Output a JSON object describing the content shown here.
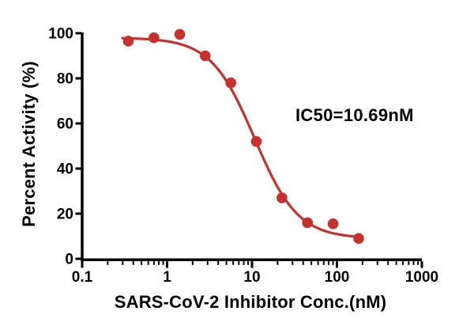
{
  "chart_data": {
    "type": "scatter",
    "title": "",
    "xlabel": "SARS-CoV-2 Inhibitor Conc.(nM)",
    "ylabel": "Percent Activity (%)",
    "annotation": "IC50=10.69nM",
    "x_scale": "log10",
    "xlim": [
      0.1,
      1000
    ],
    "ylim": [
      0,
      100
    ],
    "grid": false,
    "legend_position": "none",
    "x_tick_values": [
      0.1,
      1,
      10,
      100,
      1000
    ],
    "x_tick_labels": [
      "0.1",
      "1",
      "10",
      "100",
      "1000"
    ],
    "y_tick_values": [
      0,
      20,
      40,
      60,
      80,
      100
    ],
    "y_tick_labels": [
      "0",
      "20",
      "40",
      "60",
      "80",
      "100"
    ],
    "series": [
      {
        "name": "percent-activity-vs-inhibitor-conc",
        "marker": "circle",
        "color": "#C5322E",
        "x": [
          0.35,
          0.7,
          1.41,
          2.81,
          5.63,
          11.25,
          22.5,
          45,
          90,
          180
        ],
        "y": [
          96.5,
          98,
          99.5,
          90,
          78,
          52,
          27,
          16,
          15.5,
          9
        ]
      }
    ],
    "curve_fit": {
      "model": "four-parameter-logistic-inhibition",
      "top": 98,
      "bottom": 9,
      "ic50": 10.69,
      "hill_slope": 1.7,
      "x_start": 0.3,
      "x_end": 195,
      "color": "#C5322E"
    }
  },
  "colors": {
    "curve": "#C5322E",
    "axis": "#000000",
    "text": "#000000",
    "background": "#ffffff"
  }
}
